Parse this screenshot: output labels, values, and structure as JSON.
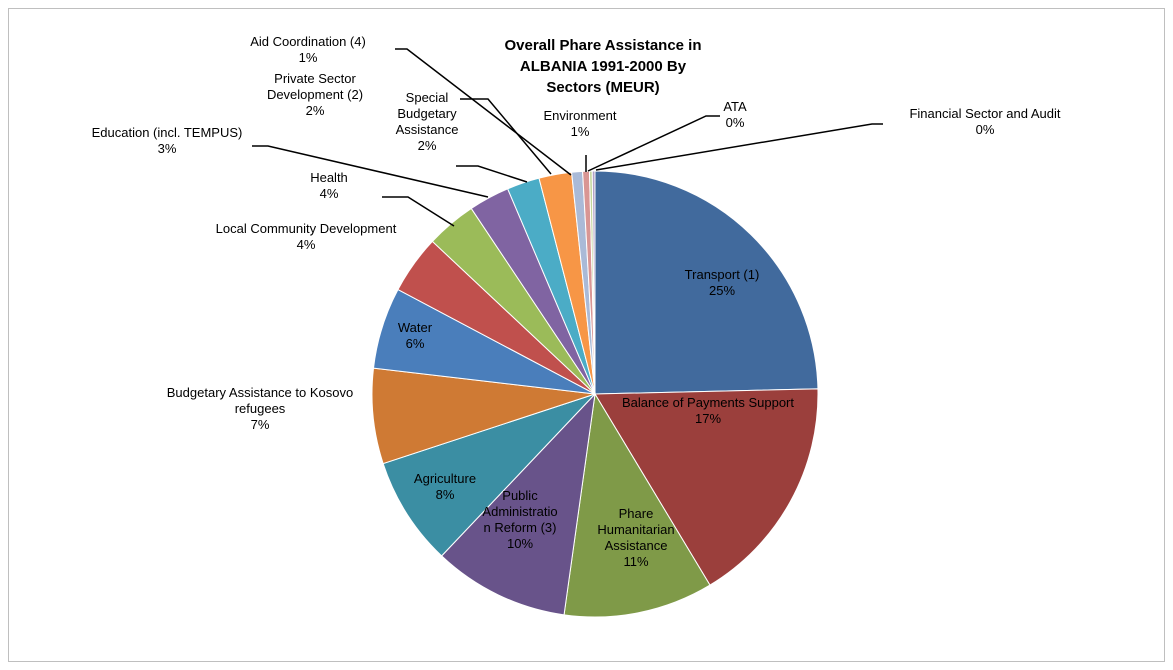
{
  "chart_data": {
    "type": "pie",
    "title": "Overall Phare Assistance in ALBANIA 1991-2000 By Sectors (MEUR)",
    "title_lines": [
      "Overall Phare Assistance in",
      "ALBANIA 1991-2000 By",
      "Sectors (MEUR)"
    ],
    "start_angle_deg": 0,
    "direction": "clockwise",
    "slices": [
      {
        "name": "Transport (1)",
        "percent_label": "25%",
        "value": 25.0,
        "color": "#416a9d",
        "label_lines": [
          "Transport (1)",
          "25%"
        ],
        "leader": false
      },
      {
        "name": "Balance of Payments Support",
        "percent_label": "17%",
        "value": 17.0,
        "color": "#9b3f3c",
        "label_lines": [
          "Balance of Payments Support",
          "17%"
        ],
        "leader": false
      },
      {
        "name": "Phare Humanitarian Assistance",
        "percent_label": "11%",
        "value": 11.0,
        "color": "#7f9a48",
        "label_lines": [
          "Phare",
          "Humanitarian",
          "Assistance",
          "11%"
        ],
        "leader": false
      },
      {
        "name": "Public Administration Reform (3)",
        "percent_label": "10%",
        "value": 10.0,
        "color": "#68538a",
        "label_lines": [
          "Public",
          "Administratio",
          "n Reform (3)",
          "10%"
        ],
        "leader": false
      },
      {
        "name": "Agriculture",
        "percent_label": "8%",
        "value": 8.0,
        "color": "#3b8ea3",
        "label_lines": [
          "Agriculture",
          "8%"
        ],
        "leader": false
      },
      {
        "name": "Budgetary Assistance to Kosovo refugees",
        "percent_label": "7%",
        "value": 7.0,
        "color": "#cf7a34",
        "label_lines": [
          "Budgetary Assistance to Kosovo",
          "refugees",
          "7%"
        ],
        "leader": false
      },
      {
        "name": "Water",
        "percent_label": "6%",
        "value": 6.0,
        "color": "#4a7ebb",
        "label_lines": [
          "Water",
          "6%"
        ],
        "leader": false
      },
      {
        "name": "Local Community Development",
        "percent_label": "4%",
        "value": 4.3,
        "color": "#c0504d",
        "label_lines": [
          "Local Community Development",
          "4%"
        ],
        "leader": false
      },
      {
        "name": "Health",
        "percent_label": "4%",
        "value": 3.7,
        "color": "#9bbb59",
        "label_lines": [
          "Health",
          "4%"
        ],
        "leader": true
      },
      {
        "name": "Education (incl. TEMPUS)",
        "percent_label": "3%",
        "value": 3.0,
        "color": "#8064a2",
        "label_lines": [
          "Education (incl. TEMPUS)",
          "3%"
        ],
        "leader": true
      },
      {
        "name": "Private Sector Development (2)",
        "percent_label": "2%",
        "value": 2.4,
        "color": "#4bacc6",
        "label_lines": [
          "Private Sector",
          "Development (2)",
          "2%"
        ],
        "leader": true
      },
      {
        "name": "Special Budgetary Assistance",
        "percent_label": "2%",
        "value": 2.4,
        "color": "#f79646",
        "label_lines": [
          "Special",
          "Budgetary",
          "Assistance",
          "2%"
        ],
        "leader": true
      },
      {
        "name": "Aid Coordination (4)",
        "percent_label": "1%",
        "value": 0.8,
        "color": "#aabad7",
        "label_lines": [
          "Aid Coordination (4)",
          "1%"
        ],
        "leader": true
      },
      {
        "name": "Environment",
        "percent_label": "1%",
        "value": 0.5,
        "color": "#d99694",
        "label_lines": [
          "Environment",
          "1%"
        ],
        "leader": true
      },
      {
        "name": "ATA",
        "percent_label": "0%",
        "value": 0.2,
        "color": "#c3d69b",
        "label_lines": [
          "ATA",
          "0%"
        ],
        "leader": true
      },
      {
        "name": "Financial Sector and Audit",
        "percent_label": "0%",
        "value": 0.2,
        "color": "#b2a2c7",
        "label_lines": [
          "Financial Sector and Audit",
          "0%"
        ],
        "leader": true
      }
    ]
  }
}
